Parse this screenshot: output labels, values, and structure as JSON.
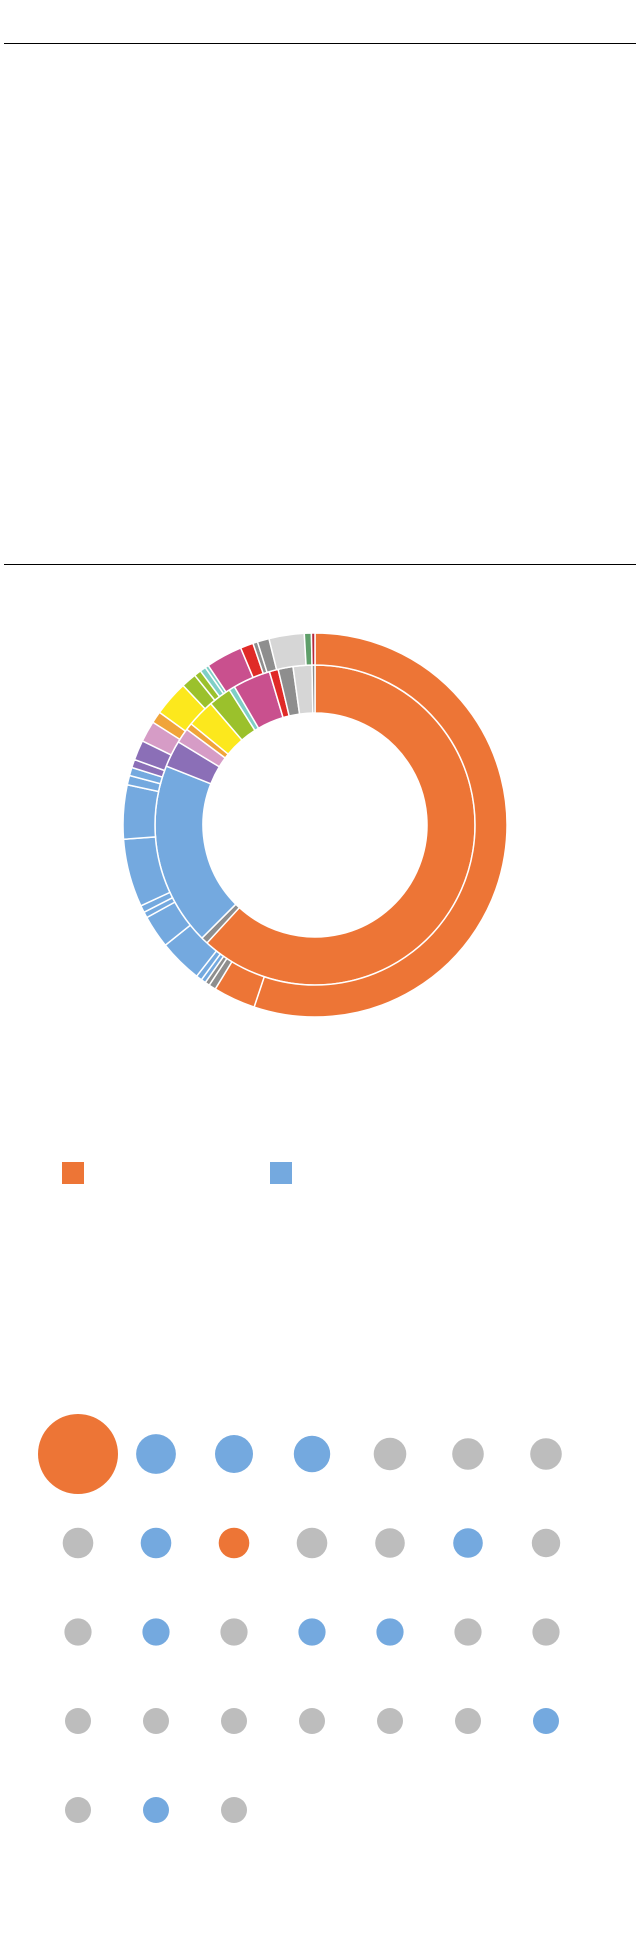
{
  "chart_data": [
    {
      "type": "line",
      "title": "",
      "xlabel": "",
      "ylabel": "",
      "series": []
    },
    {
      "type": "pie",
      "variant": "sunburst-donut",
      "title": "",
      "colors": {
        "orange": "#ED7536",
        "blue": "#74A9DF",
        "purple": "#8B6FB7",
        "pink": "#D69CC6",
        "light_orange": "#F0A43A",
        "yellow": "#FCE81D",
        "green": "#9BC12C",
        "teal": "#7FCFC6",
        "magenta": "#C9508E",
        "red": "#E02A27",
        "gray": "#8E8E8E",
        "light_gray": "#D6D6D6",
        "dark_green": "#5F9F6A",
        "crimson": "#B8283A"
      },
      "inner_ring": [
        {
          "color": "orange",
          "value": 61.8
        },
        {
          "color": "gray",
          "value": 0.7
        },
        {
          "color": "blue",
          "value": 18.5
        },
        {
          "color": "purple",
          "value": 2.7
        },
        {
          "color": "pink",
          "value": 1.5
        },
        {
          "color": "light_orange",
          "value": 0.7
        },
        {
          "color": "yellow",
          "value": 2.8
        },
        {
          "color": "green",
          "value": 2.3
        },
        {
          "color": "teal",
          "value": 0.6
        },
        {
          "color": "magenta",
          "value": 3.8
        },
        {
          "color": "red",
          "value": 0.9
        },
        {
          "color": "gray",
          "value": 1.5
        },
        {
          "color": "light_gray",
          "value": 1.9
        },
        {
          "color": "gray",
          "value": 0.3
        }
      ],
      "outer_ring": [
        {
          "color": "orange",
          "value": 55.8
        },
        {
          "color": "orange",
          "value": 3.6
        },
        {
          "color": "gray",
          "value": 0.6
        },
        {
          "color": "gray",
          "value": 0.4
        },
        {
          "color": "blue",
          "value": 0.4
        },
        {
          "color": "blue",
          "value": 0.5
        },
        {
          "color": "blue",
          "value": 3.7
        },
        {
          "color": "blue",
          "value": 2.8
        },
        {
          "color": "blue",
          "value": 0.5
        },
        {
          "color": "blue",
          "value": 0.6
        },
        {
          "color": "blue",
          "value": 5.8
        },
        {
          "color": "blue",
          "value": 4.6
        },
        {
          "color": "blue",
          "value": 0.8
        },
        {
          "color": "blue",
          "value": 0.7
        },
        {
          "color": "purple",
          "value": 0.7
        },
        {
          "color": "purple",
          "value": 1.7
        },
        {
          "color": "pink",
          "value": 1.8
        },
        {
          "color": "light_orange",
          "value": 1.0
        },
        {
          "color": "yellow",
          "value": 3.0
        },
        {
          "color": "green",
          "value": 1.3
        },
        {
          "color": "green",
          "value": 0.6
        },
        {
          "color": "teal",
          "value": 0.5
        },
        {
          "color": "teal",
          "value": 0.3
        },
        {
          "color": "magenta",
          "value": 3.1
        },
        {
          "color": "red",
          "value": 1.1
        },
        {
          "color": "gray",
          "value": 0.4
        },
        {
          "color": "gray",
          "value": 1.0
        },
        {
          "color": "light_gray",
          "value": 3.0
        },
        {
          "color": "dark_green",
          "value": 0.6
        },
        {
          "color": "crimson",
          "value": 0.3
        }
      ]
    },
    {
      "type": "scatter",
      "variant": "proportional-circle-grid",
      "title": "",
      "legend": {
        "placement": "bottom",
        "entries": [
          {
            "label": "",
            "color": "#ED7536"
          },
          {
            "label": "",
            "color": "#74A9DF"
          }
        ]
      },
      "columns": 7,
      "colors": {
        "orange": "#ED7536",
        "blue": "#74A9DF",
        "gray": "#BDBDBD"
      },
      "points": [
        {
          "color": "orange",
          "size": 100
        },
        {
          "color": "blue",
          "size": 24
        },
        {
          "color": "blue",
          "size": 22
        },
        {
          "color": "blue",
          "size": 20
        },
        {
          "color": "gray",
          "size": 16
        },
        {
          "color": "gray",
          "size": 15
        },
        {
          "color": "gray",
          "size": 15
        },
        {
          "color": "gray",
          "size": 14
        },
        {
          "color": "blue",
          "size": 14
        },
        {
          "color": "orange",
          "size": 14
        },
        {
          "color": "gray",
          "size": 14
        },
        {
          "color": "gray",
          "size": 13
        },
        {
          "color": "blue",
          "size": 13
        },
        {
          "color": "gray",
          "size": 12
        },
        {
          "color": "gray",
          "size": 11
        },
        {
          "color": "blue",
          "size": 11
        },
        {
          "color": "gray",
          "size": 11
        },
        {
          "color": "blue",
          "size": 11
        },
        {
          "color": "blue",
          "size": 11
        },
        {
          "color": "gray",
          "size": 11
        },
        {
          "color": "gray",
          "size": 11
        },
        {
          "color": "gray",
          "size": 10
        },
        {
          "color": "gray",
          "size": 10
        },
        {
          "color": "gray",
          "size": 10
        },
        {
          "color": "gray",
          "size": 10
        },
        {
          "color": "gray",
          "size": 10
        },
        {
          "color": "gray",
          "size": 10
        },
        {
          "color": "blue",
          "size": 10
        },
        {
          "color": "gray",
          "size": 10
        },
        {
          "color": "blue",
          "size": 10
        },
        {
          "color": "gray",
          "size": 10
        }
      ]
    }
  ]
}
